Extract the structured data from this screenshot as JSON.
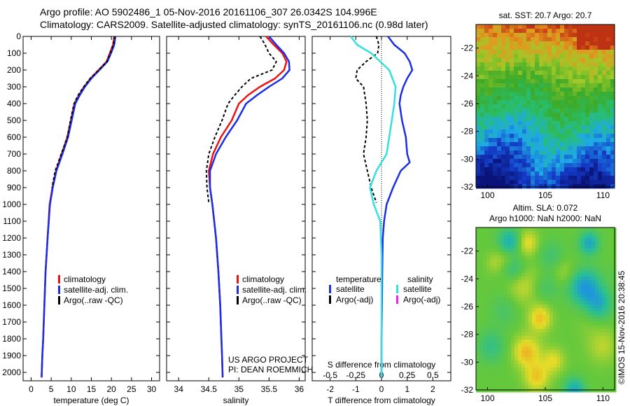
{
  "header": {
    "line1": "Argo profile: AO 5902486_1 05-Nov-2016 20161106_307 26.0342S 104.996E",
    "line2": "Climatology: CARS2009. Satellite-adjusted climatology: synTS_20161106.nc (0.98d later)"
  },
  "colors": {
    "climatology": "#ee1111",
    "satellite": "#1a2ee6",
    "argo": "#000000",
    "satellite_salinity": "#33e0e0",
    "argo_adj_salinity": "#ee22ee"
  },
  "footer": {
    "project": "US ARGO PROJECT",
    "pi": "PI: DEAN ROEMMICH",
    "credit": "©IMOS 15-Nov-2016 20:38:45"
  },
  "chart_data": [
    {
      "id": "temperature-profile",
      "type": "line",
      "xlabel": "temperature (deg C)",
      "xlim": [
        -2,
        32
      ],
      "ylim": [
        2050,
        0
      ],
      "xticks": [
        0,
        5,
        10,
        15,
        20,
        25,
        30
      ],
      "yticks": [
        0,
        100,
        200,
        300,
        400,
        500,
        600,
        700,
        800,
        900,
        1000,
        1100,
        1200,
        1300,
        1400,
        1500,
        1600,
        1700,
        1800,
        1900,
        2000
      ],
      "legend": [
        "climatology",
        "satellite-adj. clim.",
        "Argo(..raw -QC)"
      ],
      "series": [
        {
          "name": "climatology",
          "color_key": "climatology",
          "x": [
            20.7,
            20.4,
            19.6,
            18.8,
            16.8,
            14.8,
            13.2,
            11.9,
            10.8,
            9.9,
            9.0,
            7.6,
            6.2,
            5.3,
            4.6,
            4.1,
            3.6,
            3.3,
            3.0,
            2.8,
            2.6
          ],
          "y": [
            0,
            50,
            100,
            150,
            200,
            250,
            300,
            350,
            400,
            500,
            600,
            700,
            800,
            900,
            1000,
            1200,
            1400,
            1600,
            1800,
            1900,
            2030
          ]
        },
        {
          "name": "satellite-adj. clim.",
          "color_key": "satellite",
          "x": [
            21.0,
            20.7,
            19.9,
            19.0,
            17.0,
            15.0,
            13.4,
            12.1,
            11.0,
            10.1,
            9.2,
            7.8,
            6.3,
            5.4,
            4.7,
            4.1,
            3.6,
            3.3,
            3.0,
            2.8,
            2.6
          ],
          "y": [
            0,
            50,
            100,
            150,
            200,
            250,
            300,
            350,
            400,
            500,
            600,
            700,
            800,
            900,
            1000,
            1200,
            1400,
            1600,
            1800,
            1900,
            2030
          ]
        },
        {
          "name": "Argo(..raw -QC)",
          "color_key": "argo",
          "x": [
            20.8,
            20.5,
            19.7,
            18.9,
            16.9,
            14.7,
            13.1,
            11.7,
            10.7,
            9.8,
            9.0,
            7.5,
            6.0,
            5.2
          ],
          "y": [
            0,
            50,
            100,
            150,
            200,
            250,
            300,
            350,
            400,
            500,
            600,
            700,
            800,
            900
          ]
        }
      ]
    },
    {
      "id": "salinity-profile",
      "type": "line",
      "xlabel": "salinity",
      "xlim": [
        33.8,
        36.1
      ],
      "ylim": [
        2050,
        0
      ],
      "xticks": [
        34,
        34.5,
        35,
        35.5,
        36
      ],
      "legend": [
        "climatology",
        "satellite-adj. clim.",
        "Argo(..raw -QC)"
      ],
      "series": [
        {
          "name": "climatology",
          "color_key": "climatology",
          "x": [
            35.45,
            35.58,
            35.72,
            35.79,
            35.75,
            35.6,
            35.35,
            35.15,
            35.0,
            34.88,
            34.7,
            34.57,
            34.5,
            34.52,
            34.56,
            34.62,
            34.66,
            34.69,
            34.71,
            34.72,
            34.73
          ],
          "y": [
            0,
            50,
            100,
            150,
            200,
            250,
            300,
            350,
            400,
            500,
            600,
            700,
            800,
            900,
            1000,
            1200,
            1400,
            1600,
            1800,
            1900,
            2030
          ]
        },
        {
          "name": "satellite-adj. clim.",
          "color_key": "satellite",
          "x": [
            35.5,
            35.62,
            35.75,
            35.83,
            35.84,
            35.72,
            35.5,
            35.3,
            35.12,
            34.97,
            34.78,
            34.62,
            34.52,
            34.52,
            34.56,
            34.62,
            34.66,
            34.69,
            34.71,
            34.72,
            34.73
          ],
          "y": [
            0,
            50,
            100,
            150,
            200,
            250,
            300,
            350,
            400,
            500,
            600,
            700,
            800,
            900,
            1000,
            1200,
            1400,
            1600,
            1800,
            1900,
            2030
          ]
        },
        {
          "name": "Argo(..raw -QC)",
          "color_key": "argo",
          "x": [
            35.35,
            35.42,
            35.5,
            35.62,
            35.55,
            35.2,
            35.05,
            34.93,
            34.82,
            34.72,
            34.6,
            34.5,
            34.46,
            34.47,
            34.5
          ],
          "y": [
            0,
            40,
            100,
            150,
            200,
            250,
            300,
            350,
            400,
            500,
            600,
            700,
            800,
            900,
            990
          ]
        }
      ]
    },
    {
      "id": "difference-profile",
      "type": "line",
      "xlabel": "T difference from climatology",
      "xlabel_top": "S difference from climatology",
      "xlim": [
        -2.7,
        2.7
      ],
      "ylim": [
        2050,
        0
      ],
      "xticks": [
        -2,
        -1,
        0,
        1,
        2
      ],
      "xticks_top": [
        -0.5,
        -0.25,
        0,
        0.25,
        0.5
      ],
      "legend_titles": [
        "temperature",
        "salinity"
      ],
      "legend": [
        "satellite",
        "Argo(-adj)",
        "satellite",
        "Argo(-adj)"
      ],
      "series": [
        {
          "name": "satellite",
          "group": "temperature",
          "color_key": "satellite",
          "x": [
            0.25,
            0.5,
            0.9,
            1.1,
            1.2,
            1.0,
            0.85,
            0.75,
            0.7,
            0.8,
            0.95,
            1.0,
            1.1,
            0.75,
            0.45,
            0.2,
            0.1,
            0.05,
            0.03,
            0.02,
            0.0,
            0.0,
            0.0
          ],
          "y": [
            0,
            50,
            100,
            150,
            200,
            250,
            300,
            350,
            400,
            500,
            600,
            700,
            750,
            800,
            900,
            1000,
            1100,
            1200,
            1400,
            1600,
            1800,
            1900,
            2030
          ]
        },
        {
          "name": "Argo(-adj)",
          "group": "temperature",
          "color_key": "argo",
          "x": [
            -0.2,
            -0.1,
            -0.15,
            -0.6,
            -0.95,
            -1.0,
            -0.7,
            -0.6,
            -0.55,
            -0.6,
            -0.7,
            -0.55,
            -0.4,
            -0.2
          ],
          "y": [
            0,
            50,
            100,
            150,
            200,
            250,
            300,
            400,
            500,
            600,
            700,
            800,
            900,
            990
          ]
        },
        {
          "name": "satellite",
          "group": "salinity",
          "color_key": "satellite_salinity",
          "x": [
            -1.2,
            -0.95,
            -0.4,
            0.3,
            0.55,
            0.5,
            0.4,
            0.3,
            0.2,
            -0.2,
            -0.45,
            -0.3,
            -0.05,
            0.0,
            0.0,
            0.0,
            0.0
          ],
          "y": [
            0,
            50,
            100,
            200,
            300,
            400,
            500,
            600,
            700,
            800,
            900,
            1000,
            1100,
            1300,
            1600,
            1900,
            2030
          ]
        },
        {
          "name": "Argo(-adj)",
          "group": "salinity",
          "color_key": "argo_adj_salinity",
          "x": [],
          "y": []
        }
      ]
    },
    {
      "id": "sst-map",
      "type": "heatmap",
      "title": "sat. SST: 20.7 Argo: 20.7",
      "xlim": [
        99,
        111
      ],
      "ylim": [
        -32,
        -20.3
      ],
      "xticks": [
        100,
        105,
        110
      ],
      "yticks": [
        -22,
        -24,
        -26,
        -28,
        -30,
        -32
      ],
      "marker": [
        104.996,
        -26.0342
      ]
    },
    {
      "id": "sla-map",
      "type": "heatmap",
      "title": "Altim. SLA: 0.072",
      "subtitle": "Argo h1000: NaN h2000: NaN",
      "xlim": [
        99,
        111
      ],
      "ylim": [
        -32,
        -20.3
      ],
      "xticks": [
        100,
        105,
        110
      ],
      "yticks": [
        -22,
        -24,
        -26,
        -28,
        -30,
        -32
      ]
    }
  ]
}
